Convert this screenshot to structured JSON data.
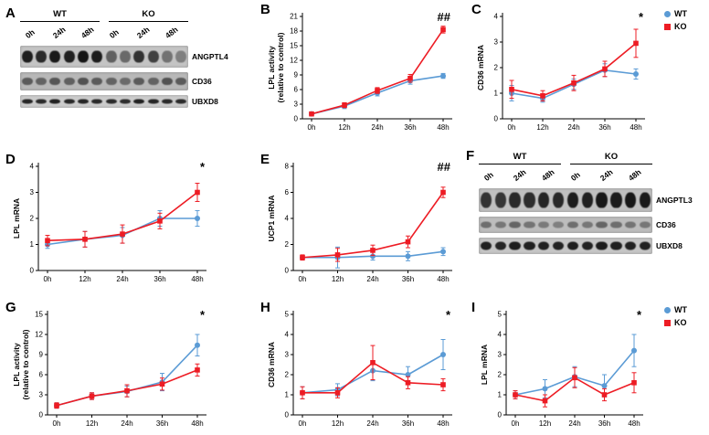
{
  "panel_letters": {
    "A": "A",
    "B": "B",
    "C": "C",
    "D": "D",
    "E": "E",
    "F": "F",
    "G": "G",
    "H": "H",
    "I": "I"
  },
  "colors": {
    "wt": "#5b9bd5",
    "ko": "#ed1c24",
    "axis": "#000000"
  },
  "legend": {
    "items": [
      {
        "label": "WT",
        "marker": "circle",
        "color": "#5b9bd5"
      },
      {
        "label": "KO",
        "marker": "square",
        "color": "#ed1c24"
      }
    ]
  },
  "blots": {
    "A": {
      "groups": [
        "WT",
        "KO"
      ],
      "lane_labels": [
        "0h",
        "24h",
        "48h",
        "0h",
        "24h",
        "48h"
      ],
      "rows": [
        {
          "label": "ANGPTL4",
          "strip_height": 24,
          "band_height": 13,
          "strip_bg": "#c4c4c4",
          "intensities": [
            0.92,
            0.85,
            0.95,
            0.9,
            0.97,
            0.93,
            0.55,
            0.5,
            0.8,
            0.72,
            0.45,
            0.38
          ]
        },
        {
          "label": "CD36",
          "strip_height": 20,
          "band_height": 8,
          "strip_bg": "#b8b8b8",
          "intensities": [
            0.55,
            0.5,
            0.58,
            0.52,
            0.6,
            0.55,
            0.5,
            0.45,
            0.55,
            0.5,
            0.6,
            0.55
          ]
        },
        {
          "label": "UBXD8",
          "strip_height": 14,
          "band_height": 5,
          "strip_bg": "#cccccc",
          "intensities": [
            0.88,
            0.85,
            0.9,
            0.87,
            0.88,
            0.86,
            0.85,
            0.84,
            0.9,
            0.88,
            0.86,
            0.85
          ]
        }
      ]
    },
    "F": {
      "groups": [
        "WT",
        "KO"
      ],
      "lane_labels": [
        "0h",
        "24h",
        "48h",
        "0h",
        "24h",
        "48h"
      ],
      "rows": [
        {
          "label": "ANGPTL3",
          "strip_height": 26,
          "band_height": 17,
          "strip_bg": "#c0c0c0",
          "intensities": [
            0.8,
            0.78,
            0.85,
            0.83,
            0.88,
            0.86,
            0.92,
            0.9,
            0.95,
            0.93,
            0.95,
            0.94
          ]
        },
        {
          "label": "CD36",
          "strip_height": 18,
          "band_height": 7,
          "strip_bg": "#bdbdbd",
          "intensities": [
            0.45,
            0.4,
            0.5,
            0.42,
            0.38,
            0.35,
            0.45,
            0.4,
            0.5,
            0.45,
            0.42,
            0.4
          ]
        },
        {
          "label": "UBXD8",
          "strip_height": 18,
          "band_height": 9,
          "strip_bg": "#c6c6c6",
          "intensities": [
            0.9,
            0.88,
            0.92,
            0.9,
            0.9,
            0.89,
            0.92,
            0.9,
            0.93,
            0.91,
            0.9,
            0.9
          ]
        }
      ]
    }
  },
  "chart_data": {
    "B": {
      "type": "line",
      "ylabel_lines": [
        "LPL activity",
        "(relative to control)"
      ],
      "ylim": [
        0,
        21
      ],
      "yticks": [
        0,
        3,
        6,
        9,
        12,
        15,
        18,
        21
      ],
      "categories": [
        "0h",
        "12h",
        "24h",
        "36h",
        "48h"
      ],
      "annotation": "##",
      "series": [
        {
          "name": "WT",
          "color": "#5b9bd5",
          "marker": "circle",
          "values": [
            1.0,
            2.6,
            5.3,
            7.8,
            8.8
          ],
          "errors": [
            0.3,
            0.5,
            0.6,
            0.7,
            0.5
          ]
        },
        {
          "name": "KO",
          "color": "#ed1c24",
          "marker": "square",
          "values": [
            1.0,
            2.8,
            5.8,
            8.3,
            18.3
          ],
          "errors": [
            0.3,
            0.5,
            0.6,
            0.8,
            0.7
          ]
        }
      ]
    },
    "C": {
      "type": "line",
      "ylabel_lines": [
        "CD36 mRNA"
      ],
      "ylim": [
        0,
        4
      ],
      "yticks": [
        0,
        1,
        2,
        3,
        4
      ],
      "categories": [
        "0h",
        "12h",
        "24h",
        "36h",
        "48h"
      ],
      "annotation": "*",
      "series": [
        {
          "name": "WT",
          "color": "#5b9bd5",
          "marker": "circle",
          "values": [
            1.0,
            0.8,
            1.35,
            1.9,
            1.75
          ],
          "errors": [
            0.3,
            0.15,
            0.2,
            0.25,
            0.2
          ]
        },
        {
          "name": "KO",
          "color": "#ed1c24",
          "marker": "square",
          "values": [
            1.15,
            0.9,
            1.4,
            1.95,
            2.95
          ],
          "errors": [
            0.35,
            0.2,
            0.3,
            0.3,
            0.55
          ]
        }
      ]
    },
    "D": {
      "type": "line",
      "ylabel_lines": [
        "LPL mRNA"
      ],
      "ylim": [
        0,
        4
      ],
      "yticks": [
        0,
        1,
        2,
        3,
        4
      ],
      "categories": [
        "0h",
        "12h",
        "24h",
        "36h",
        "48h"
      ],
      "annotation": "*",
      "series": [
        {
          "name": "WT",
          "color": "#5b9bd5",
          "marker": "circle",
          "values": [
            1.0,
            1.2,
            1.35,
            2.0,
            2.0
          ],
          "errors": [
            0.15,
            0.3,
            0.3,
            0.3,
            0.3
          ]
        },
        {
          "name": "KO",
          "color": "#ed1c24",
          "marker": "square",
          "values": [
            1.15,
            1.2,
            1.4,
            1.9,
            3.0
          ],
          "errors": [
            0.2,
            0.3,
            0.35,
            0.3,
            0.35
          ]
        }
      ]
    },
    "E": {
      "type": "line",
      "ylabel_lines": [
        "UCP1 mRNA"
      ],
      "ylim": [
        0,
        8
      ],
      "yticks": [
        0,
        2,
        4,
        6,
        8
      ],
      "categories": [
        "0h",
        "12h",
        "24h",
        "36h",
        "48h"
      ],
      "annotation": "##",
      "series": [
        {
          "name": "WT",
          "color": "#5b9bd5",
          "marker": "circle",
          "values": [
            1.0,
            1.0,
            1.1,
            1.1,
            1.45
          ],
          "errors": [
            0.15,
            0.8,
            0.3,
            0.35,
            0.3
          ]
        },
        {
          "name": "KO",
          "color": "#ed1c24",
          "marker": "square",
          "values": [
            1.0,
            1.2,
            1.55,
            2.2,
            6.0
          ],
          "errors": [
            0.2,
            0.5,
            0.4,
            0.45,
            0.4
          ]
        }
      ]
    },
    "G": {
      "type": "line",
      "ylabel_lines": [
        "LPL activity",
        "(relative to control)"
      ],
      "ylim": [
        0,
        15
      ],
      "yticks": [
        0,
        3,
        6,
        9,
        12,
        15
      ],
      "categories": [
        "0h",
        "12h",
        "24h",
        "36h",
        "48h"
      ],
      "annotation": "*",
      "series": [
        {
          "name": "WT",
          "color": "#5b9bd5",
          "marker": "circle",
          "values": [
            1.4,
            2.8,
            3.5,
            4.9,
            10.4
          ],
          "errors": [
            0.4,
            0.5,
            0.8,
            1.3,
            1.6
          ]
        },
        {
          "name": "KO",
          "color": "#ed1c24",
          "marker": "square",
          "values": [
            1.4,
            2.8,
            3.6,
            4.6,
            6.7
          ],
          "errors": [
            0.4,
            0.5,
            0.9,
            0.9,
            0.9
          ]
        }
      ]
    },
    "H": {
      "type": "line",
      "ylabel_lines": [
        "CD36 mRNA"
      ],
      "ylim": [
        0,
        5
      ],
      "yticks": [
        0,
        1,
        2,
        3,
        4,
        5
      ],
      "categories": [
        "0h",
        "12h",
        "24h",
        "36h",
        "48h"
      ],
      "annotation": "*",
      "series": [
        {
          "name": "WT",
          "color": "#5b9bd5",
          "marker": "circle",
          "values": [
            1.1,
            1.25,
            2.2,
            2.0,
            3.0
          ],
          "errors": [
            0.3,
            0.3,
            0.5,
            0.4,
            0.75
          ]
        },
        {
          "name": "KO",
          "color": "#ed1c24",
          "marker": "square",
          "values": [
            1.1,
            1.1,
            2.6,
            1.6,
            1.5
          ],
          "errors": [
            0.3,
            0.25,
            0.85,
            0.3,
            0.3
          ]
        }
      ]
    },
    "I": {
      "type": "line",
      "ylabel_lines": [
        "LPL mRNA"
      ],
      "ylim": [
        0,
        5
      ],
      "yticks": [
        0,
        1,
        2,
        3,
        4,
        5
      ],
      "categories": [
        "0h",
        "12h",
        "24h",
        "36h",
        "48h"
      ],
      "annotation": "*",
      "series": [
        {
          "name": "WT",
          "color": "#5b9bd5",
          "marker": "circle",
          "values": [
            1.0,
            1.3,
            1.9,
            1.45,
            3.2
          ],
          "errors": [
            0.2,
            0.45,
            0.5,
            0.55,
            0.8
          ]
        },
        {
          "name": "KO",
          "color": "#ed1c24",
          "marker": "square",
          "values": [
            1.0,
            0.7,
            1.85,
            1.0,
            1.6
          ],
          "errors": [
            0.2,
            0.3,
            0.5,
            0.3,
            0.5
          ]
        }
      ]
    }
  }
}
